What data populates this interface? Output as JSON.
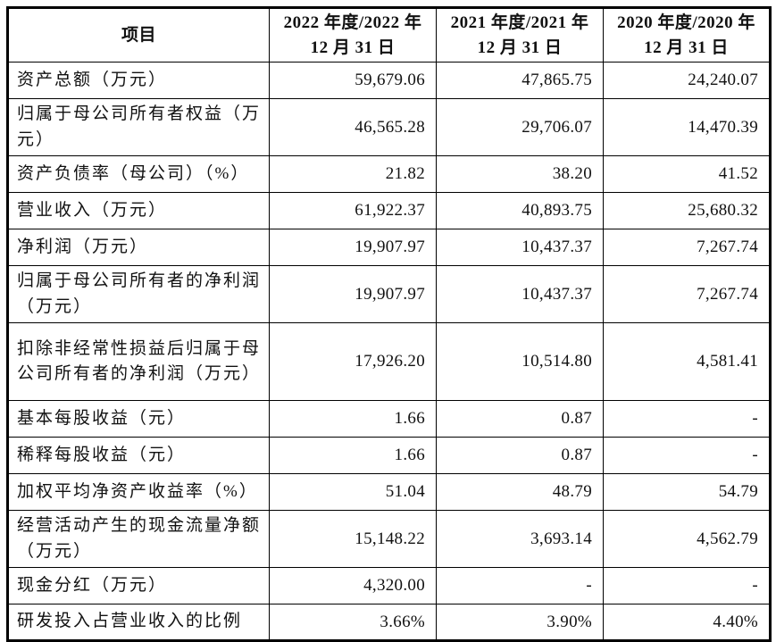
{
  "colors": {
    "background": "#ffffff",
    "border": "#000000",
    "text": "#111111"
  },
  "table": {
    "header": {
      "item_label": "项目",
      "periods": [
        {
          "line1": "2022 年度/2022 年",
          "line2": "12 月 31 日"
        },
        {
          "line1": "2021 年度/2021 年",
          "line2": "12 月 31 日"
        },
        {
          "line1": "2020 年度/2020 年",
          "line2": "12 月 31 日"
        }
      ]
    },
    "rows": [
      {
        "label": "资产总额（万元）",
        "values": [
          "59,679.06",
          "47,865.75",
          "24,240.07"
        ]
      },
      {
        "label": "归属于母公司所有者权益（万元）",
        "values": [
          "46,565.28",
          "29,706.07",
          "14,470.39"
        ]
      },
      {
        "label": "资产负债率（母公司）（%）",
        "values": [
          "21.82",
          "38.20",
          "41.52"
        ]
      },
      {
        "label": "营业收入（万元）",
        "values": [
          "61,922.37",
          "40,893.75",
          "25,680.32"
        ]
      },
      {
        "label": "净利润（万元）",
        "values": [
          "19,907.97",
          "10,437.37",
          "7,267.74"
        ]
      },
      {
        "label": "归属于母公司所有者的净利润（万元）",
        "values": [
          "19,907.97",
          "10,437.37",
          "7,267.74"
        ]
      },
      {
        "label": "扣除非经常性损益后归属于母公司所有者的净利润（万元）",
        "values": [
          "17,926.20",
          "10,514.80",
          "4,581.41"
        ]
      },
      {
        "label": "基本每股收益（元）",
        "values": [
          "1.66",
          "0.87",
          "-"
        ]
      },
      {
        "label": "稀释每股收益（元）",
        "values": [
          "1.66",
          "0.87",
          "-"
        ]
      },
      {
        "label": "加权平均净资产收益率（%）",
        "values": [
          "51.04",
          "48.79",
          "54.79"
        ]
      },
      {
        "label": "经营活动产生的现金流量净额（万元）",
        "values": [
          "15,148.22",
          "3,693.14",
          "4,562.79"
        ]
      },
      {
        "label": "现金分红（万元）",
        "values": [
          "4,320.00",
          "-",
          "-"
        ]
      },
      {
        "label": "研发投入占营业收入的比例",
        "values": [
          "3.66%",
          "3.90%",
          "4.40%"
        ]
      }
    ]
  }
}
